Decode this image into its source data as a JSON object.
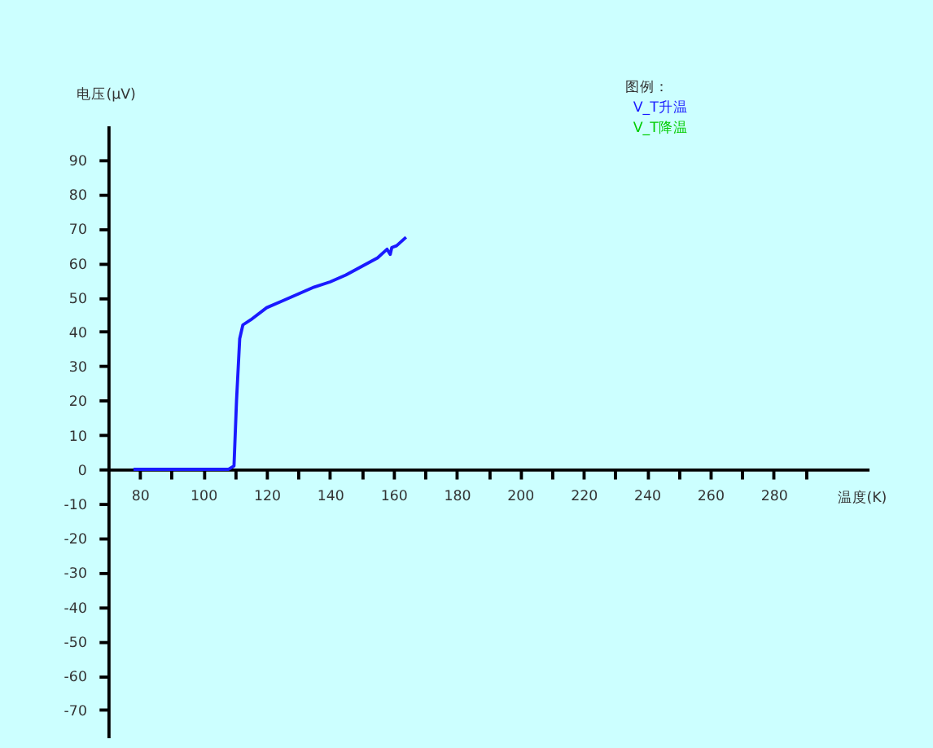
{
  "chart_data": {
    "type": "line",
    "xlabel": "温度(K)",
    "ylabel": "电压(μV)",
    "legend_title": "图例：",
    "legend": "top",
    "grid": false,
    "xlim": [
      70,
      310
    ],
    "ylim": [
      -78,
      100
    ],
    "xticks": [
      80,
      {
        "value": 90,
        "label": null
      },
      100,
      {
        "value": 110,
        "label": null
      },
      120,
      {
        "value": 130,
        "label": null
      },
      140,
      {
        "value": 150,
        "label": null
      },
      160,
      {
        "value": 170,
        "label": null
      },
      180,
      {
        "value": 190,
        "label": null
      },
      200,
      {
        "value": 210,
        "label": null
      },
      220,
      {
        "value": 230,
        "label": null
      },
      240,
      {
        "value": 250,
        "label": null
      },
      260,
      {
        "value": 270,
        "label": null
      },
      280,
      {
        "value": 290,
        "label": null
      }
    ],
    "yticks": [
      -70,
      -60,
      -50,
      -40,
      -30,
      -20,
      -10,
      0,
      10,
      20,
      30,
      40,
      50,
      60,
      70,
      80,
      90
    ],
    "series": [
      {
        "name": "V_T升温",
        "color": "#1a1aff",
        "x": [
          78,
          90,
          100,
          108,
          109.7,
          110.5,
          111.5,
          112.5,
          115,
          120,
          125,
          130,
          135,
          140,
          145,
          150,
          155,
          158,
          159,
          159.5,
          161,
          164
        ],
        "values": [
          0,
          0,
          0,
          0,
          1,
          20,
          38,
          42,
          43.5,
          47,
          49,
          51,
          53,
          54.5,
          56.5,
          59,
          61.5,
          64,
          62.5,
          64.5,
          65,
          67.5
        ]
      },
      {
        "name": "V_T降温",
        "color": "#00cc00"
      }
    ]
  }
}
